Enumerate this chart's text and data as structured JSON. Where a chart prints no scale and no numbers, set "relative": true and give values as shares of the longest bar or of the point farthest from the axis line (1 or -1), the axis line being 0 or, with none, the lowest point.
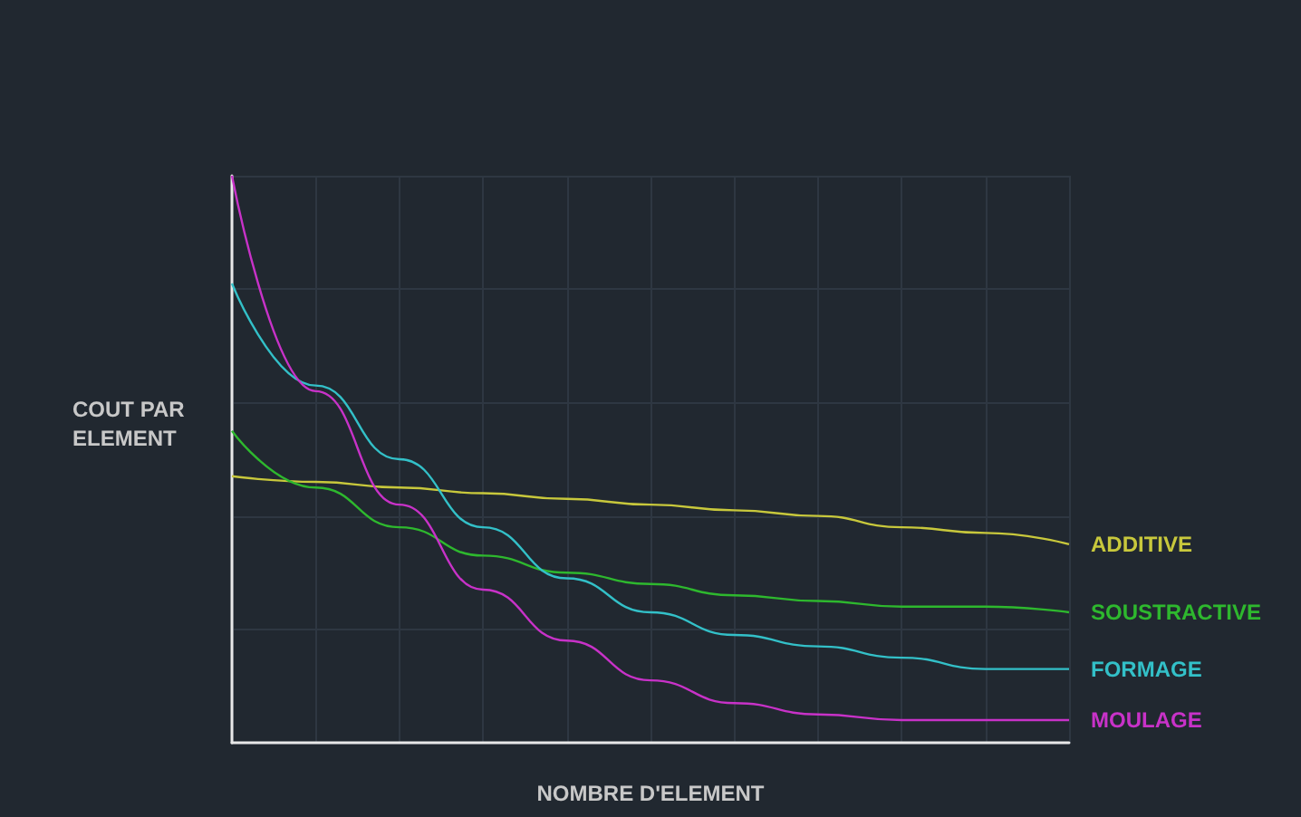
{
  "chart_data": {
    "type": "line",
    "relative": true,
    "xlabel": "NOMBRE D'ELEMENT",
    "ylabel": "COUT PAR ELEMENT",
    "grid": true,
    "legend": false,
    "marker": "none",
    "line_style": "solid",
    "categories": [
      null,
      null,
      null,
      null,
      null,
      null,
      null,
      null,
      null,
      null,
      null
    ],
    "series": [
      {
        "name": "ADDITIVE",
        "color": "#c8c83c",
        "values": [
          0.47,
          0.46,
          0.45,
          0.44,
          0.43,
          0.42,
          0.41,
          0.4,
          0.38,
          0.37,
          0.35
        ]
      },
      {
        "name": "SOUSTRACTIVE",
        "color": "#2eb82e",
        "values": [
          0.55,
          0.45,
          0.38,
          0.33,
          0.3,
          0.28,
          0.26,
          0.25,
          0.24,
          0.24,
          0.23
        ]
      },
      {
        "name": "FORMAGE",
        "color": "#33c0c8",
        "values": [
          0.81,
          0.63,
          0.5,
          0.38,
          0.29,
          0.23,
          0.19,
          0.17,
          0.15,
          0.13,
          0.13
        ]
      },
      {
        "name": "MOULAGE",
        "color": "#c832c8",
        "values": [
          1,
          0.62,
          0.42,
          0.27,
          0.18,
          0.11,
          0.07,
          0.05,
          0.04,
          0.04,
          0.04
        ]
      }
    ]
  }
}
